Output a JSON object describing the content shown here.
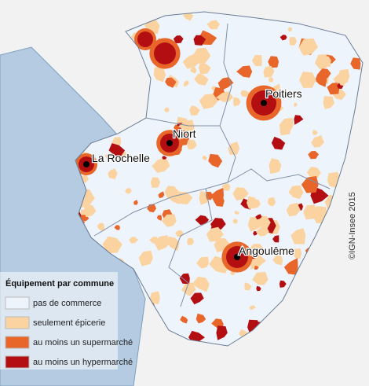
{
  "map": {
    "cities": [
      {
        "name": "Poitiers"
      },
      {
        "name": "Niort"
      },
      {
        "name": "La Rochelle"
      },
      {
        "name": "Angoulême"
      }
    ],
    "legend": {
      "title": "Équipement par commune",
      "items": [
        {
          "label": "pas de commerce",
          "color": "#eef4fb"
        },
        {
          "label": "seulement épicerie",
          "color": "#fbd3a0"
        },
        {
          "label": "au moins un supermarché",
          "color": "#e8662a"
        },
        {
          "label": "au moins un hypermarché",
          "color": "#b30f13"
        }
      ]
    },
    "credit": "©IGN-Insee 2015"
  }
}
